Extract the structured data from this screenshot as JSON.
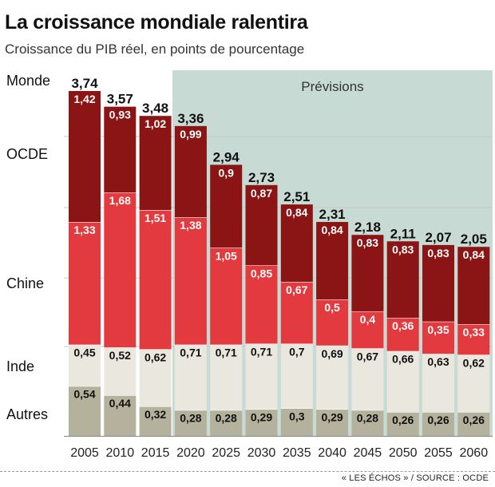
{
  "title": "La croissance mondiale ralentira",
  "subtitle": "Croissance du PIB réel, en points de pourcentage",
  "source": "« LES ÉCHOS » / SOURCE : OCDE",
  "forecast_label": "Prévisions",
  "colors": {
    "OCDE": "#8b1414",
    "Chine": "#e23a3f",
    "Inde": "#eae8de",
    "Autres": "#b4b29c",
    "forecast_bg": "#c7dad3",
    "grid": "#c8c8c8"
  },
  "chart_data": {
    "type": "bar",
    "stacked": true,
    "title": "La croissance mondiale ralentira",
    "subtitle": "Croissance du PIB réel, en points de pourcentage",
    "categories": [
      "2005",
      "2010",
      "2015",
      "2020",
      "2025",
      "2030",
      "2035",
      "2040",
      "2045",
      "2050",
      "2055",
      "2060"
    ],
    "totals_label": "Monde",
    "totals": [
      "3,74",
      "3,57",
      "3,48",
      "3,36",
      "2,94",
      "2,73",
      "2,51",
      "2,31",
      "2,18",
      "2,11",
      "2,07",
      "2,05"
    ],
    "series": [
      {
        "name": "Autres",
        "values": [
          0.54,
          0.44,
          0.32,
          0.28,
          0.28,
          0.29,
          0.3,
          0.29,
          0.28,
          0.26,
          0.26,
          0.26
        ],
        "labels": [
          "0,54",
          "0,44",
          "0,32",
          "0,28",
          "0,28",
          "0,29",
          "0,3",
          "0,29",
          "0,28",
          "0,26",
          "0,26",
          "0,26"
        ]
      },
      {
        "name": "Inde",
        "values": [
          0.45,
          0.52,
          0.62,
          0.71,
          0.71,
          0.71,
          0.7,
          0.69,
          0.67,
          0.66,
          0.63,
          0.62
        ],
        "labels": [
          "0,45",
          "0,52",
          "0,62",
          "0,71",
          "0,71",
          "0,71",
          "0,7",
          "0,69",
          "0,67",
          "0,66",
          "0,63",
          "0,62"
        ]
      },
      {
        "name": "Chine",
        "values": [
          1.33,
          1.68,
          1.51,
          1.38,
          1.05,
          0.85,
          0.67,
          0.5,
          0.4,
          0.36,
          0.35,
          0.33
        ],
        "labels": [
          "1,33",
          "1,68",
          "1,51",
          "1,38",
          "1,05",
          "0,85",
          "0,67",
          "0,5",
          "0,4",
          "0,36",
          "0,35",
          "0,33"
        ]
      },
      {
        "name": "OCDE",
        "values": [
          1.42,
          0.93,
          1.02,
          0.99,
          0.9,
          0.87,
          0.84,
          0.84,
          0.83,
          0.83,
          0.83,
          0.84
        ],
        "labels": [
          "1,42",
          "0,93",
          "1,02",
          "0,99",
          "0,9",
          "0,87",
          "0,84",
          "0,84",
          "0,83",
          "0,83",
          "0,83",
          "0,84"
        ]
      }
    ],
    "forecast_from": "2020",
    "ylim": [
      0,
      3.74
    ],
    "grid": true,
    "legend": "left"
  }
}
